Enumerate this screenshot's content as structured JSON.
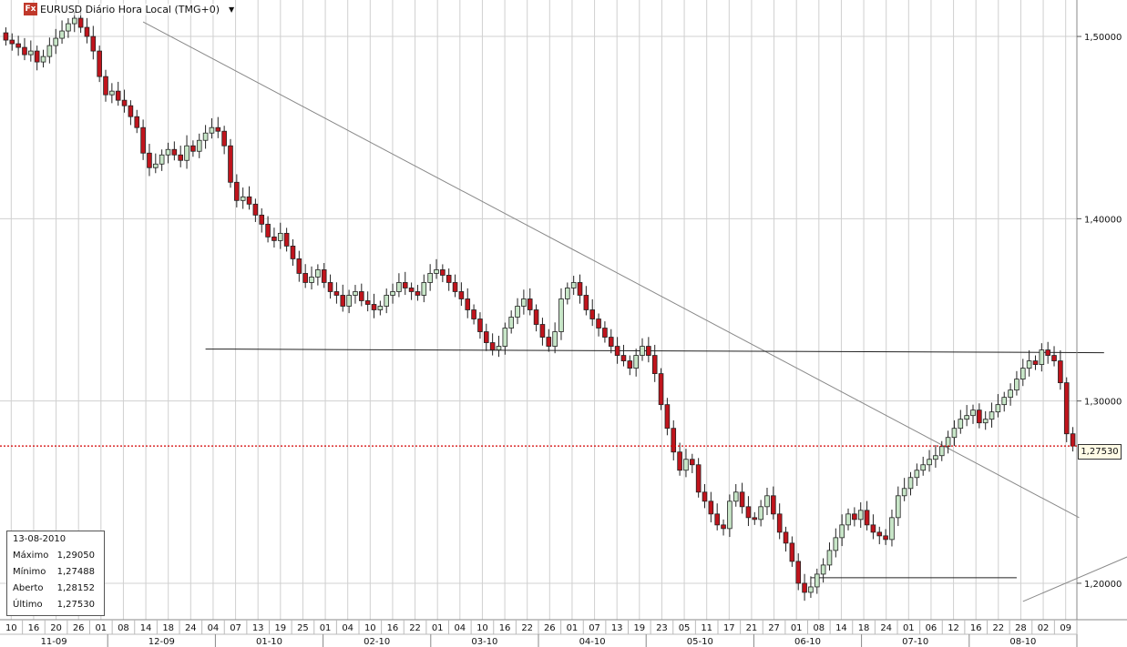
{
  "header": {
    "logo_text": "Fx",
    "title": "EURUSD Diário Hora Local (TMG+0)",
    "dropdown_icon": "triangle-down-icon"
  },
  "info_box": {
    "date": "13-08-2010",
    "rows": [
      {
        "label": "Máximo",
        "value": "1,29050"
      },
      {
        "label": "Mínimo",
        "value": "1,27488"
      },
      {
        "label": "Aberto",
        "value": "1,28152"
      },
      {
        "label": "Último",
        "value": "1,27530"
      }
    ]
  },
  "last_price_label": "1,27530",
  "colors": {
    "bull": "#c8e6c8",
    "bear": "#c0141c",
    "wick": "#222222",
    "grid": "#d0d0d0",
    "last_line": "#d40000"
  },
  "chart_data": {
    "type": "candlestick",
    "symbol": "EURUSD",
    "ylim": [
      1.18,
      1.52
    ],
    "y_ticks": [
      "1,50000",
      "1,40000",
      "1,30000",
      "1,20000"
    ],
    "y_tick_values": [
      1.5,
      1.4,
      1.3,
      1.2
    ],
    "last_price": 1.2753,
    "day_labels": [
      "10",
      "16",
      "20",
      "26",
      "01",
      "08",
      "14",
      "18",
      "24",
      "04",
      "07",
      "13",
      "19",
      "25",
      "01",
      "04",
      "10",
      "16",
      "22",
      "01",
      "04",
      "10",
      "16",
      "22",
      "26",
      "01",
      "07",
      "13",
      "19",
      "23",
      "05",
      "11",
      "17",
      "21",
      "27",
      "01",
      "08",
      "14",
      "18",
      "24",
      "01",
      "06",
      "12",
      "16",
      "22",
      "28",
      "02",
      "09"
    ],
    "month_labels": [
      "11-09",
      "12-09",
      "01-10",
      "02-10",
      "03-10",
      "04-10",
      "05-10",
      "06-10",
      "07-10",
      "08-10"
    ],
    "closes": [
      1.498,
      1.496,
      1.494,
      1.49,
      1.492,
      1.486,
      1.489,
      1.495,
      1.499,
      1.503,
      1.507,
      1.51,
      1.505,
      1.5,
      1.492,
      1.478,
      1.468,
      1.47,
      1.465,
      1.462,
      1.456,
      1.45,
      1.436,
      1.428,
      1.43,
      1.435,
      1.438,
      1.435,
      1.432,
      1.44,
      1.437,
      1.443,
      1.447,
      1.45,
      1.448,
      1.44,
      1.42,
      1.41,
      1.412,
      1.408,
      1.402,
      1.397,
      1.39,
      1.388,
      1.392,
      1.385,
      1.378,
      1.37,
      1.365,
      1.368,
      1.372,
      1.365,
      1.36,
      1.358,
      1.352,
      1.358,
      1.36,
      1.355,
      1.353,
      1.35,
      1.352,
      1.358,
      1.36,
      1.365,
      1.362,
      1.36,
      1.358,
      1.365,
      1.37,
      1.372,
      1.369,
      1.365,
      1.36,
      1.356,
      1.35,
      1.345,
      1.338,
      1.332,
      1.328,
      1.33,
      1.34,
      1.346,
      1.352,
      1.356,
      1.35,
      1.342,
      1.335,
      1.33,
      1.338,
      1.356,
      1.362,
      1.365,
      1.358,
      1.35,
      1.345,
      1.34,
      1.335,
      1.33,
      1.325,
      1.322,
      1.318,
      1.325,
      1.33,
      1.325,
      1.315,
      1.298,
      1.285,
      1.272,
      1.262,
      1.268,
      1.265,
      1.25,
      1.245,
      1.238,
      1.232,
      1.23,
      1.245,
      1.25,
      1.242,
      1.236,
      1.235,
      1.242,
      1.248,
      1.238,
      1.228,
      1.222,
      1.212,
      1.2,
      1.195,
      1.198,
      1.205,
      1.21,
      1.218,
      1.225,
      1.232,
      1.238,
      1.235,
      1.24,
      1.232,
      1.228,
      1.226,
      1.224,
      1.236,
      1.248,
      1.252,
      1.258,
      1.262,
      1.265,
      1.268,
      1.27,
      1.275,
      1.28,
      1.285,
      1.29,
      1.292,
      1.295,
      1.288,
      1.29,
      1.294,
      1.298,
      1.302,
      1.306,
      1.312,
      1.318,
      1.322,
      1.32,
      1.328,
      1.325,
      1.322,
      1.31,
      1.282,
      1.2753
    ],
    "trendlines": [
      {
        "name": "descending-resistance",
        "from": {
          "index": 22,
          "price": 1.508
        },
        "to": {
          "index": 172,
          "price": 1.236
        }
      },
      {
        "name": "support-1.33",
        "from": {
          "index": 32,
          "price": 1.3285
        },
        "to": {
          "index": 176,
          "price": 1.3265
        }
      },
      {
        "name": "support-1.20",
        "from": {
          "index": 129,
          "price": 1.203
        },
        "to": {
          "index": 162,
          "price": 1.203
        }
      },
      {
        "name": "ascending-support",
        "from": {
          "index": 163,
          "price": 1.19
        },
        "to": {
          "index": 219,
          "price": 1.272
        }
      }
    ]
  }
}
